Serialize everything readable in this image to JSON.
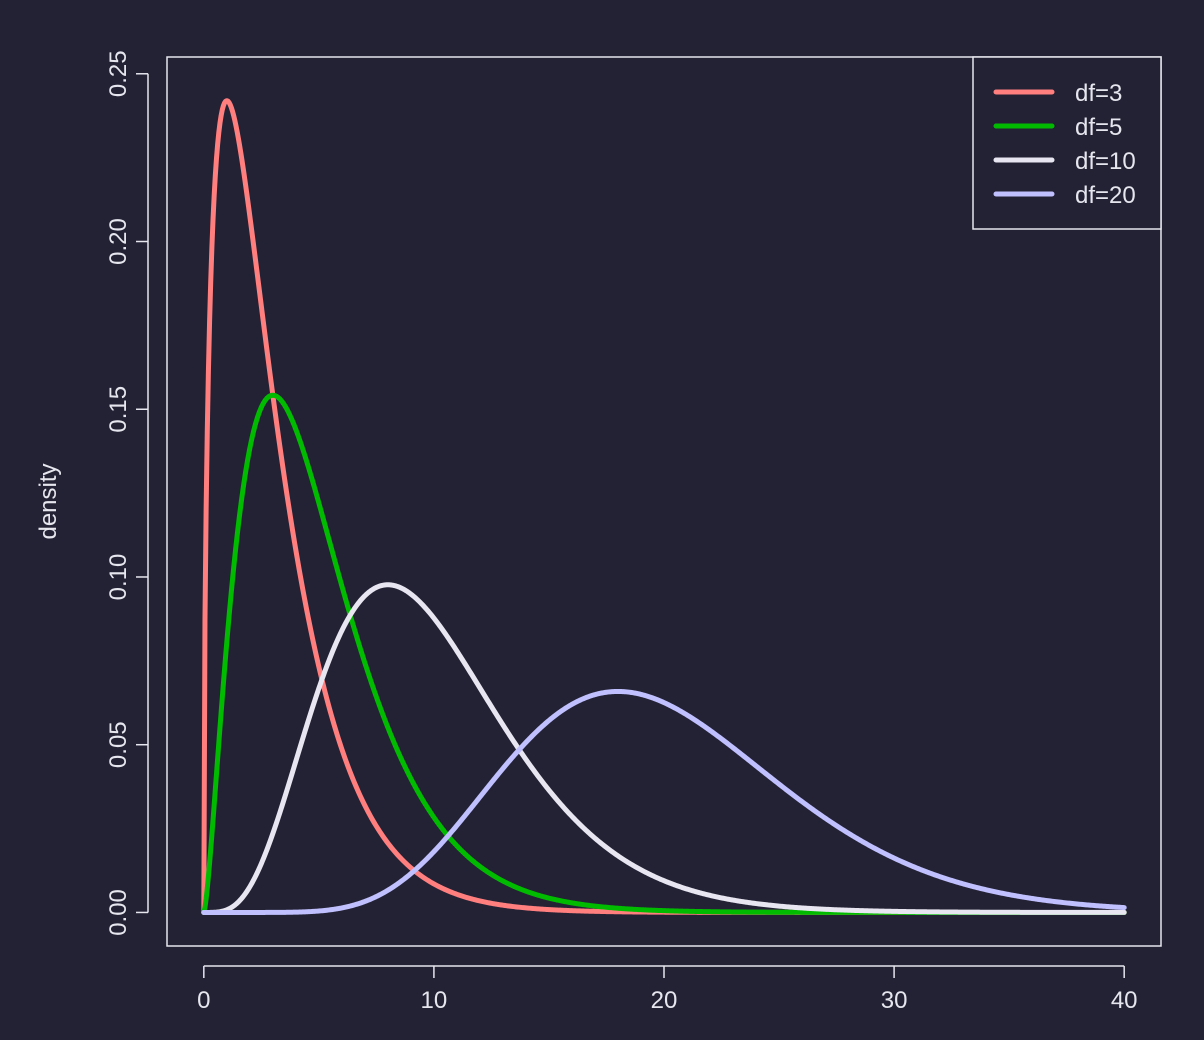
{
  "chart_data": {
    "type": "line",
    "title": "",
    "xlabel": "",
    "ylabel": "density",
    "xlim": [
      -1.6,
      41.6
    ],
    "ylim": [
      -0.01,
      0.255
    ],
    "x_ticks": [
      0,
      10,
      20,
      30,
      40
    ],
    "y_ticks": [
      0.0,
      0.05,
      0.1,
      0.15,
      0.2,
      0.25
    ],
    "x_tick_labels": [
      "0",
      "10",
      "20",
      "30",
      "40"
    ],
    "y_tick_labels": [
      "0.00",
      "0.05",
      "0.10",
      "0.15",
      "0.20",
      "0.25"
    ],
    "grid": false,
    "legend_position": "top-right",
    "background": "#232235",
    "foreground": "#e6e6ee",
    "series": [
      {
        "name": "df=3",
        "df": 3,
        "color": "#ff7f7f",
        "x": [
          0,
          0.1,
          0.25,
          0.5,
          0.75,
          1,
          1.5,
          2,
          2.5,
          3,
          3.5,
          4,
          5,
          6,
          7,
          8,
          9,
          10,
          12,
          14,
          16,
          18,
          20,
          25,
          30,
          35,
          40
        ],
        "y": [
          0,
          0.122,
          0.186,
          0.231,
          0.241,
          0.242,
          0.23,
          0.208,
          0.183,
          0.158,
          0.134,
          0.113,
          0.077,
          0.051,
          0.032,
          0.02,
          0.012,
          0.007,
          0.003,
          0.001,
          0.0005,
          0.0002,
          0.0001,
          0,
          0,
          0,
          0
        ]
      },
      {
        "name": "df=5",
        "df": 5,
        "color": "#00bb00",
        "x": [
          0,
          0.25,
          0.5,
          1,
          1.5,
          2,
          2.5,
          3,
          3.5,
          4,
          5,
          6,
          7,
          8,
          9,
          10,
          11,
          12,
          14,
          16,
          18,
          20,
          25,
          30,
          35,
          40
        ],
        "y": [
          0,
          0.036,
          0.073,
          0.081,
          0.121,
          0.138,
          0.15,
          0.154,
          0.152,
          0.144,
          0.122,
          0.097,
          0.073,
          0.053,
          0.037,
          0.025,
          0.017,
          0.011,
          0.005,
          0.002,
          0.001,
          0.0004,
          0,
          0,
          0,
          0
        ]
      },
      {
        "name": "df=10",
        "df": 10,
        "color": "#e8e6f0",
        "x": [
          0,
          1,
          2,
          3,
          4,
          5,
          6,
          7,
          8,
          9,
          10,
          11,
          12,
          13,
          14,
          15,
          16,
          18,
          20,
          22,
          24,
          26,
          28,
          30,
          35,
          40
        ],
        "y": [
          0,
          0.001,
          0.008,
          0.025,
          0.045,
          0.067,
          0.085,
          0.095,
          0.098,
          0.095,
          0.088,
          0.078,
          0.067,
          0.057,
          0.047,
          0.038,
          0.03,
          0.018,
          0.01,
          0.006,
          0.003,
          0.0015,
          0.0008,
          0.0004,
          0.0001,
          0
        ]
      },
      {
        "name": "df=20",
        "df": 20,
        "color": "#c0c0ff",
        "x": [
          0,
          2,
          4,
          6,
          8,
          10,
          12,
          14,
          16,
          18,
          20,
          22,
          24,
          26,
          28,
          30,
          32,
          34,
          36,
          38,
          40
        ],
        "y": [
          0,
          0,
          0.0001,
          0.001,
          0.005,
          0.018,
          0.036,
          0.053,
          0.063,
          0.066,
          0.063,
          0.055,
          0.045,
          0.035,
          0.025,
          0.018,
          0.012,
          0.007,
          0.004,
          0.002,
          0.001
        ]
      }
    ]
  }
}
